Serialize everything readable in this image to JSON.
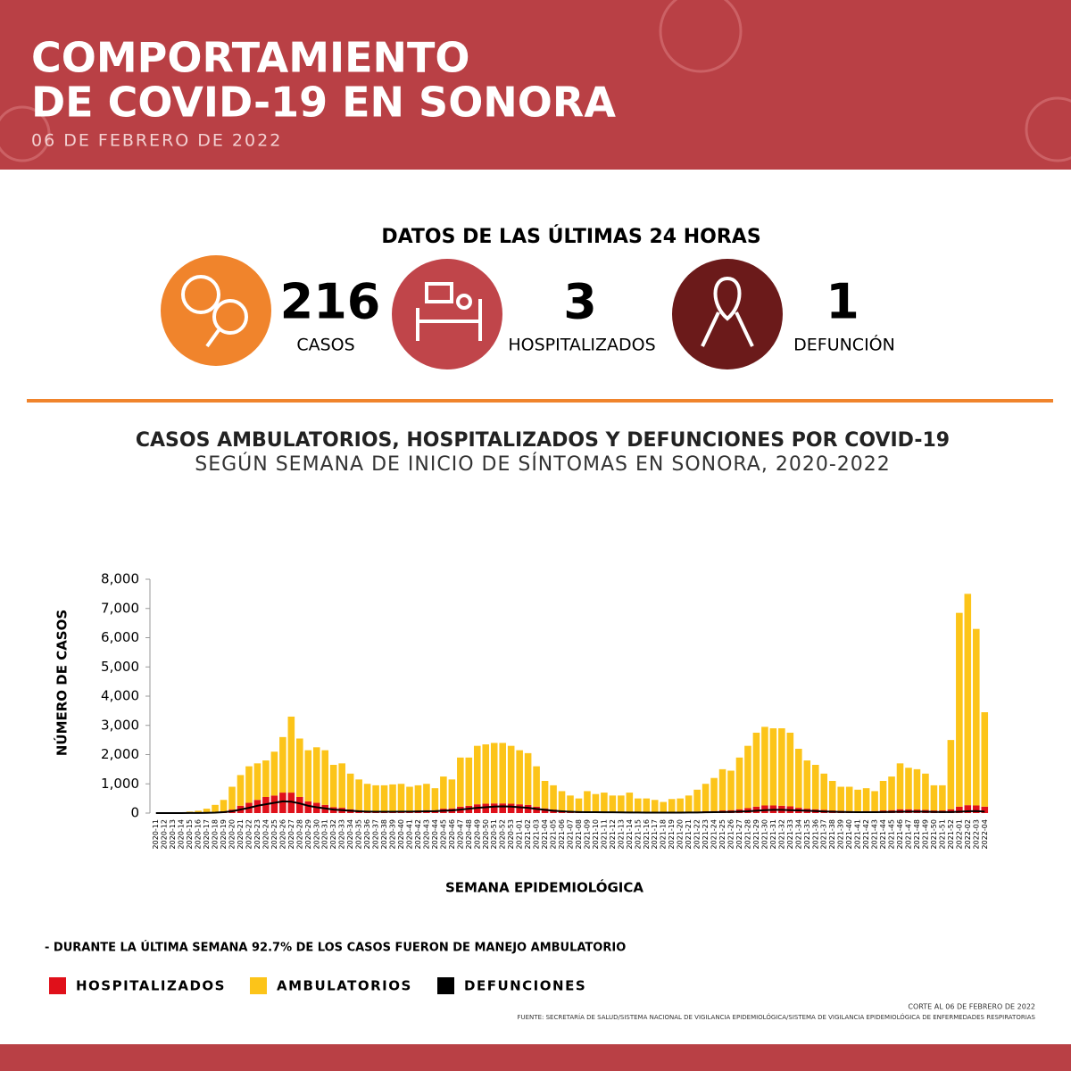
{
  "header": {
    "title_lines": [
      "COMPORTAMIENTO",
      "DE COVID-19 EN SONORA"
    ],
    "date": "06 DE FEBRERO DE 2022"
  },
  "stats": {
    "heading": "DATOS DE LAS ÚLTIMAS 24 HORAS",
    "items": [
      {
        "value": 216,
        "label": "CASOS"
      },
      {
        "value": 3,
        "label": "HOSPITALIZADOS"
      },
      {
        "value": 1,
        "label": "DEFUNCIÓN"
      }
    ]
  },
  "chart_data": {
    "type": "bar",
    "stacked": true,
    "title": "CASOS AMBULATORIOS, HOSPITALIZADOS Y DEFUNCIONES POR COVID-19",
    "subtitle": "SEGÚN SEMANA DE INICIO DE SÍNTOMAS EN SONORA, 2020-2022",
    "xlabel": "SEMANA EPIDEMIOLÓGICA",
    "ylabel": "NÚMERO DE CASOS",
    "ylim": [
      0,
      8000
    ],
    "yticks": [
      0,
      {
        "value": 1000,
        "label": "1,000"
      },
      {
        "value": 2000,
        "label": "2,000"
      },
      {
        "value": 3000,
        "label": "3,000"
      },
      {
        "value": 4000,
        "label": "4,000"
      },
      {
        "value": 5000,
        "label": "5,000"
      },
      {
        "value": 6000,
        "label": "6,000"
      },
      {
        "value": 7000,
        "label": "7,000"
      },
      {
        "value": 8000,
        "label": "8,000"
      }
    ],
    "categories": [
      "2020-11",
      "2020-12",
      "2020-13",
      "2020-14",
      "2020-15",
      "2020-16",
      "2020-17",
      "2020-18",
      "2020-19",
      "2020-20",
      "2020-21",
      "2020-22",
      "2020-23",
      "2020-24",
      "2020-25",
      "2020-26",
      "2020-27",
      "2020-28",
      "2020-29",
      "2020-30",
      "2020-31",
      "2020-32",
      "2020-33",
      "2020-34",
      "2020-35",
      "2020-36",
      "2020-37",
      "2020-38",
      "2020-39",
      "2020-40",
      "2020-41",
      "2020-42",
      "2020-43",
      "2020-44",
      "2020-45",
      "2020-46",
      "2020-47",
      "2020-48",
      "2020-49",
      "2020-50",
      "2020-51",
      "2020-52",
      "2020-53",
      "2021-01",
      "2021-02",
      "2021-03",
      "2021-04",
      "2021-05",
      "2021-06",
      "2021-07",
      "2021-08",
      "2021-09",
      "2021-10",
      "2021-11",
      "2021-12",
      "2021-13",
      "2021-14",
      "2021-15",
      "2021-16",
      "2021-17",
      "2021-18",
      "2021-19",
      "2021-20",
      "2021-21",
      "2021-22",
      "2021-23",
      "2021-24",
      "2021-25",
      "2021-26",
      "2021-27",
      "2021-28",
      "2021-29",
      "2021-30",
      "2021-31",
      "2021-32",
      "2021-33",
      "2021-34",
      "2021-35",
      "2021-36",
      "2021-37",
      "2021-38",
      "2021-39",
      "2021-40",
      "2021-41",
      "2021-42",
      "2021-43",
      "2021-44",
      "2021-45",
      "2021-46",
      "2021-47",
      "2021-48",
      "2021-49",
      "2021-50",
      "2021-51",
      "2021-52",
      "2022-01",
      "2022-02",
      "2022-03",
      "2022-04"
    ],
    "series": [
      {
        "name": "HOSPITALIZADOS",
        "color": "#e0101a",
        "values": [
          0,
          0,
          0,
          0,
          5,
          10,
          15,
          30,
          60,
          120,
          250,
          350,
          450,
          550,
          600,
          700,
          700,
          550,
          400,
          350,
          280,
          200,
          180,
          130,
          100,
          80,
          70,
          70,
          70,
          80,
          80,
          90,
          100,
          100,
          150,
          160,
          220,
          250,
          300,
          320,
          330,
          330,
          320,
          300,
          280,
          220,
          160,
          120,
          90,
          70,
          60,
          60,
          50,
          50,
          45,
          40,
          40,
          35,
          35,
          30,
          30,
          30,
          35,
          40,
          50,
          60,
          70,
          90,
          100,
          130,
          170,
          220,
          260,
          260,
          250,
          230,
          180,
          150,
          130,
          110,
          90,
          80,
          70,
          60,
          70,
          70,
          90,
          100,
          130,
          130,
          120,
          110,
          90,
          90,
          130,
          220,
          270,
          260,
          220
        ]
      },
      {
        "name": "AMBULATORIOS",
        "color": "#fcc419",
        "values": [
          0,
          0,
          10,
          20,
          45,
          70,
          135,
          250,
          390,
          780,
          1050,
          1250,
          1250,
          1250,
          1500,
          1900,
          2600,
          2000,
          1750,
          1900,
          1870,
          1450,
          1520,
          1220,
          1050,
          920,
          880,
          880,
          910,
          920,
          820,
          860,
          900,
          750,
          1100,
          990,
          1680,
          1650,
          2000,
          2030,
          2070,
          2070,
          1980,
          1850,
          1770,
          1380,
          940,
          830,
          660,
          530,
          440,
          690,
          600,
          650,
          555,
          560,
          660,
          465,
          465,
          420,
          350,
          450,
          465,
          560,
          750,
          940,
          1130,
          1410,
          1350,
          1770,
          2130,
          2530,
          2690,
          2640,
          2650,
          2520,
          2020,
          1650,
          1520,
          1240,
          1010,
          820,
          830,
          740,
          780,
          680,
          1010,
          1150,
          1570,
          1420,
          1380,
          1240,
          860,
          860,
          2370,
          6630,
          7230,
          6040,
          3230
        ]
      },
      {
        "name": "DEFUNCIONES",
        "color": "#000000",
        "type": "line",
        "values": [
          0,
          0,
          0,
          0,
          2,
          5,
          8,
          15,
          30,
          60,
          120,
          180,
          250,
          300,
          350,
          400,
          390,
          330,
          250,
          200,
          160,
          120,
          100,
          80,
          60,
          50,
          45,
          45,
          45,
          50,
          50,
          55,
          60,
          65,
          80,
          90,
          120,
          150,
          180,
          200,
          220,
          230,
          220,
          200,
          180,
          140,
          110,
          80,
          60,
          45,
          35,
          30,
          30,
          28,
          25,
          22,
          20,
          18,
          16,
          15,
          15,
          15,
          15,
          18,
          20,
          25,
          30,
          35,
          40,
          50,
          60,
          80,
          100,
          110,
          110,
          100,
          90,
          80,
          70,
          55,
          45,
          40,
          35,
          30,
          30,
          30,
          35,
          40,
          45,
          50,
          50,
          45,
          40,
          35,
          35,
          45,
          60,
          70,
          50
        ]
      }
    ]
  },
  "note": "- DURANTE LA ÚLTIMA SEMANA 92.7% DE LOS CASOS FUERON DE MANEJO AMBULATORIO",
  "footer": {
    "corte": "CORTE AL 06 DE FEBRERO DE 2022",
    "fuente": "FUENTE: SECRETARÍA DE SALUD/SISTEMA NACIONAL DE VIGILANCIA EPIDEMIOLÓGICA/SISTEMA DE VIGILANCIA EPIDEMIOLÓGICA DE ENFERMEDADES RESPIRATORIAS"
  }
}
